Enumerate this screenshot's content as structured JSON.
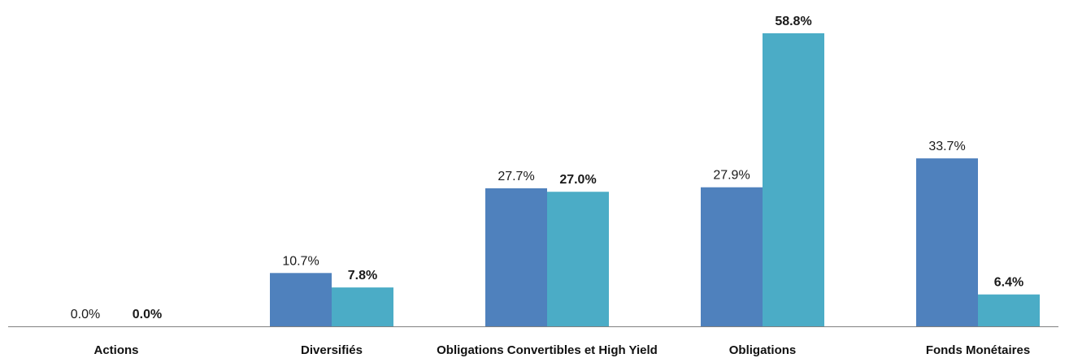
{
  "chart_data": {
    "type": "bar",
    "categories": [
      "Actions",
      "Diversifiés",
      "Obligations Convertibles et High Yield",
      "Obligations",
      "Fonds Monétaires"
    ],
    "series": [
      {
        "values": [
          0.0,
          10.7,
          27.7,
          27.9,
          33.7
        ],
        "labels": [
          "0.0%",
          "10.7%",
          "27.7%",
          "27.9%",
          "33.7%"
        ],
        "color": "#4f81bd",
        "label_bold": false
      },
      {
        "values": [
          0.0,
          7.8,
          27.0,
          58.8,
          6.4
        ],
        "labels": [
          "0.0%",
          "7.8%",
          "27.0%",
          "58.8%",
          "6.4%"
        ],
        "color": "#4bacc6",
        "label_bold": true
      }
    ],
    "unit": "%",
    "ylim": [
      0,
      58.8
    ],
    "grid": false,
    "legend": "none",
    "axis_color": "#808080"
  }
}
